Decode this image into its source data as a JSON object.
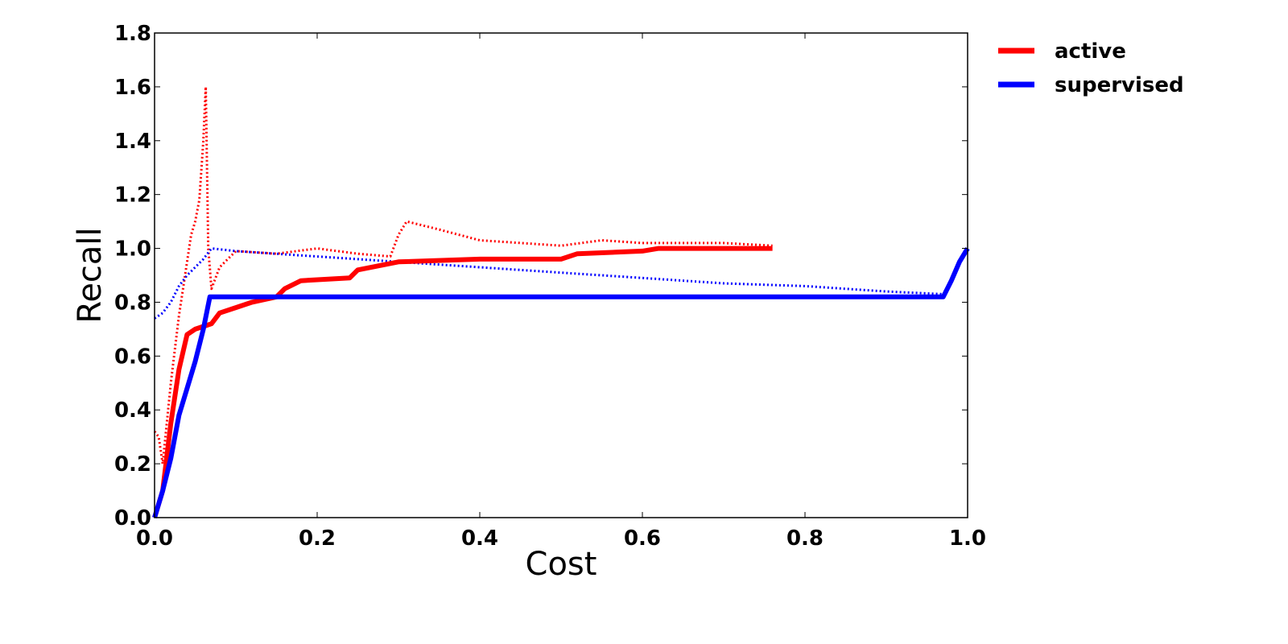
{
  "chart_data": {
    "type": "line",
    "title": "",
    "xlabel": "Cost",
    "ylabel": "Recall",
    "xlim": [
      0.0,
      1.0
    ],
    "ylim": [
      0.0,
      1.8
    ],
    "xticks": [
      "0.0",
      "0.2",
      "0.4",
      "0.6",
      "0.8",
      "1.0"
    ],
    "yticks": [
      "0.0",
      "0.2",
      "0.4",
      "0.6",
      "0.8",
      "1.0",
      "1.2",
      "1.4",
      "1.6",
      "1.8"
    ],
    "grid": false,
    "legend": {
      "placement": "outside-top-right",
      "entries": [
        "active",
        "supervised"
      ]
    },
    "colors": {
      "active": "#ff0000",
      "supervised": "#0000ff"
    },
    "series": [
      {
        "name": "active",
        "style": "solid",
        "x": [
          0.0,
          0.01,
          0.02,
          0.03,
          0.04,
          0.05,
          0.06,
          0.07,
          0.08,
          0.1,
          0.12,
          0.15,
          0.16,
          0.18,
          0.24,
          0.25,
          0.3,
          0.4,
          0.5,
          0.52,
          0.6,
          0.62,
          0.76
        ],
        "y": [
          0.0,
          0.1,
          0.35,
          0.55,
          0.68,
          0.7,
          0.71,
          0.72,
          0.76,
          0.78,
          0.8,
          0.82,
          0.85,
          0.88,
          0.89,
          0.92,
          0.95,
          0.96,
          0.96,
          0.98,
          0.99,
          1.0,
          1.0
        ]
      },
      {
        "name": "supervised",
        "style": "solid",
        "x": [
          0.0,
          0.01,
          0.02,
          0.03,
          0.04,
          0.05,
          0.06,
          0.068,
          0.07,
          0.5,
          0.97,
          0.98,
          0.99,
          1.0
        ],
        "y": [
          0.0,
          0.1,
          0.22,
          0.38,
          0.48,
          0.58,
          0.7,
          0.82,
          0.82,
          0.82,
          0.82,
          0.88,
          0.95,
          1.0
        ]
      },
      {
        "style": "dotted",
        "color_of": "active",
        "x": [
          0.0,
          0.005,
          0.01,
          0.02,
          0.03,
          0.04,
          0.045,
          0.05,
          0.055,
          0.06,
          0.063,
          0.066,
          0.07,
          0.08,
          0.1,
          0.15,
          0.2,
          0.25,
          0.29,
          0.3,
          0.31,
          0.35,
          0.4,
          0.5,
          0.55,
          0.6,
          0.7,
          0.76
        ],
        "y": [
          0.32,
          0.3,
          0.2,
          0.5,
          0.75,
          0.95,
          1.05,
          1.1,
          1.18,
          1.4,
          1.6,
          1.0,
          0.85,
          0.93,
          0.99,
          0.98,
          1.0,
          0.98,
          0.97,
          1.05,
          1.1,
          1.07,
          1.03,
          1.01,
          1.03,
          1.02,
          1.02,
          1.01
        ]
      },
      {
        "style": "dotted",
        "color_of": "supervised",
        "x": [
          0.0,
          0.01,
          0.02,
          0.03,
          0.04,
          0.05,
          0.06,
          0.07,
          0.1,
          0.2,
          0.3,
          0.4,
          0.5,
          0.6,
          0.7,
          0.8,
          0.9,
          0.97
        ],
        "y": [
          0.74,
          0.76,
          0.8,
          0.86,
          0.9,
          0.93,
          0.96,
          1.0,
          0.99,
          0.97,
          0.95,
          0.93,
          0.91,
          0.89,
          0.87,
          0.86,
          0.84,
          0.83
        ]
      }
    ]
  }
}
